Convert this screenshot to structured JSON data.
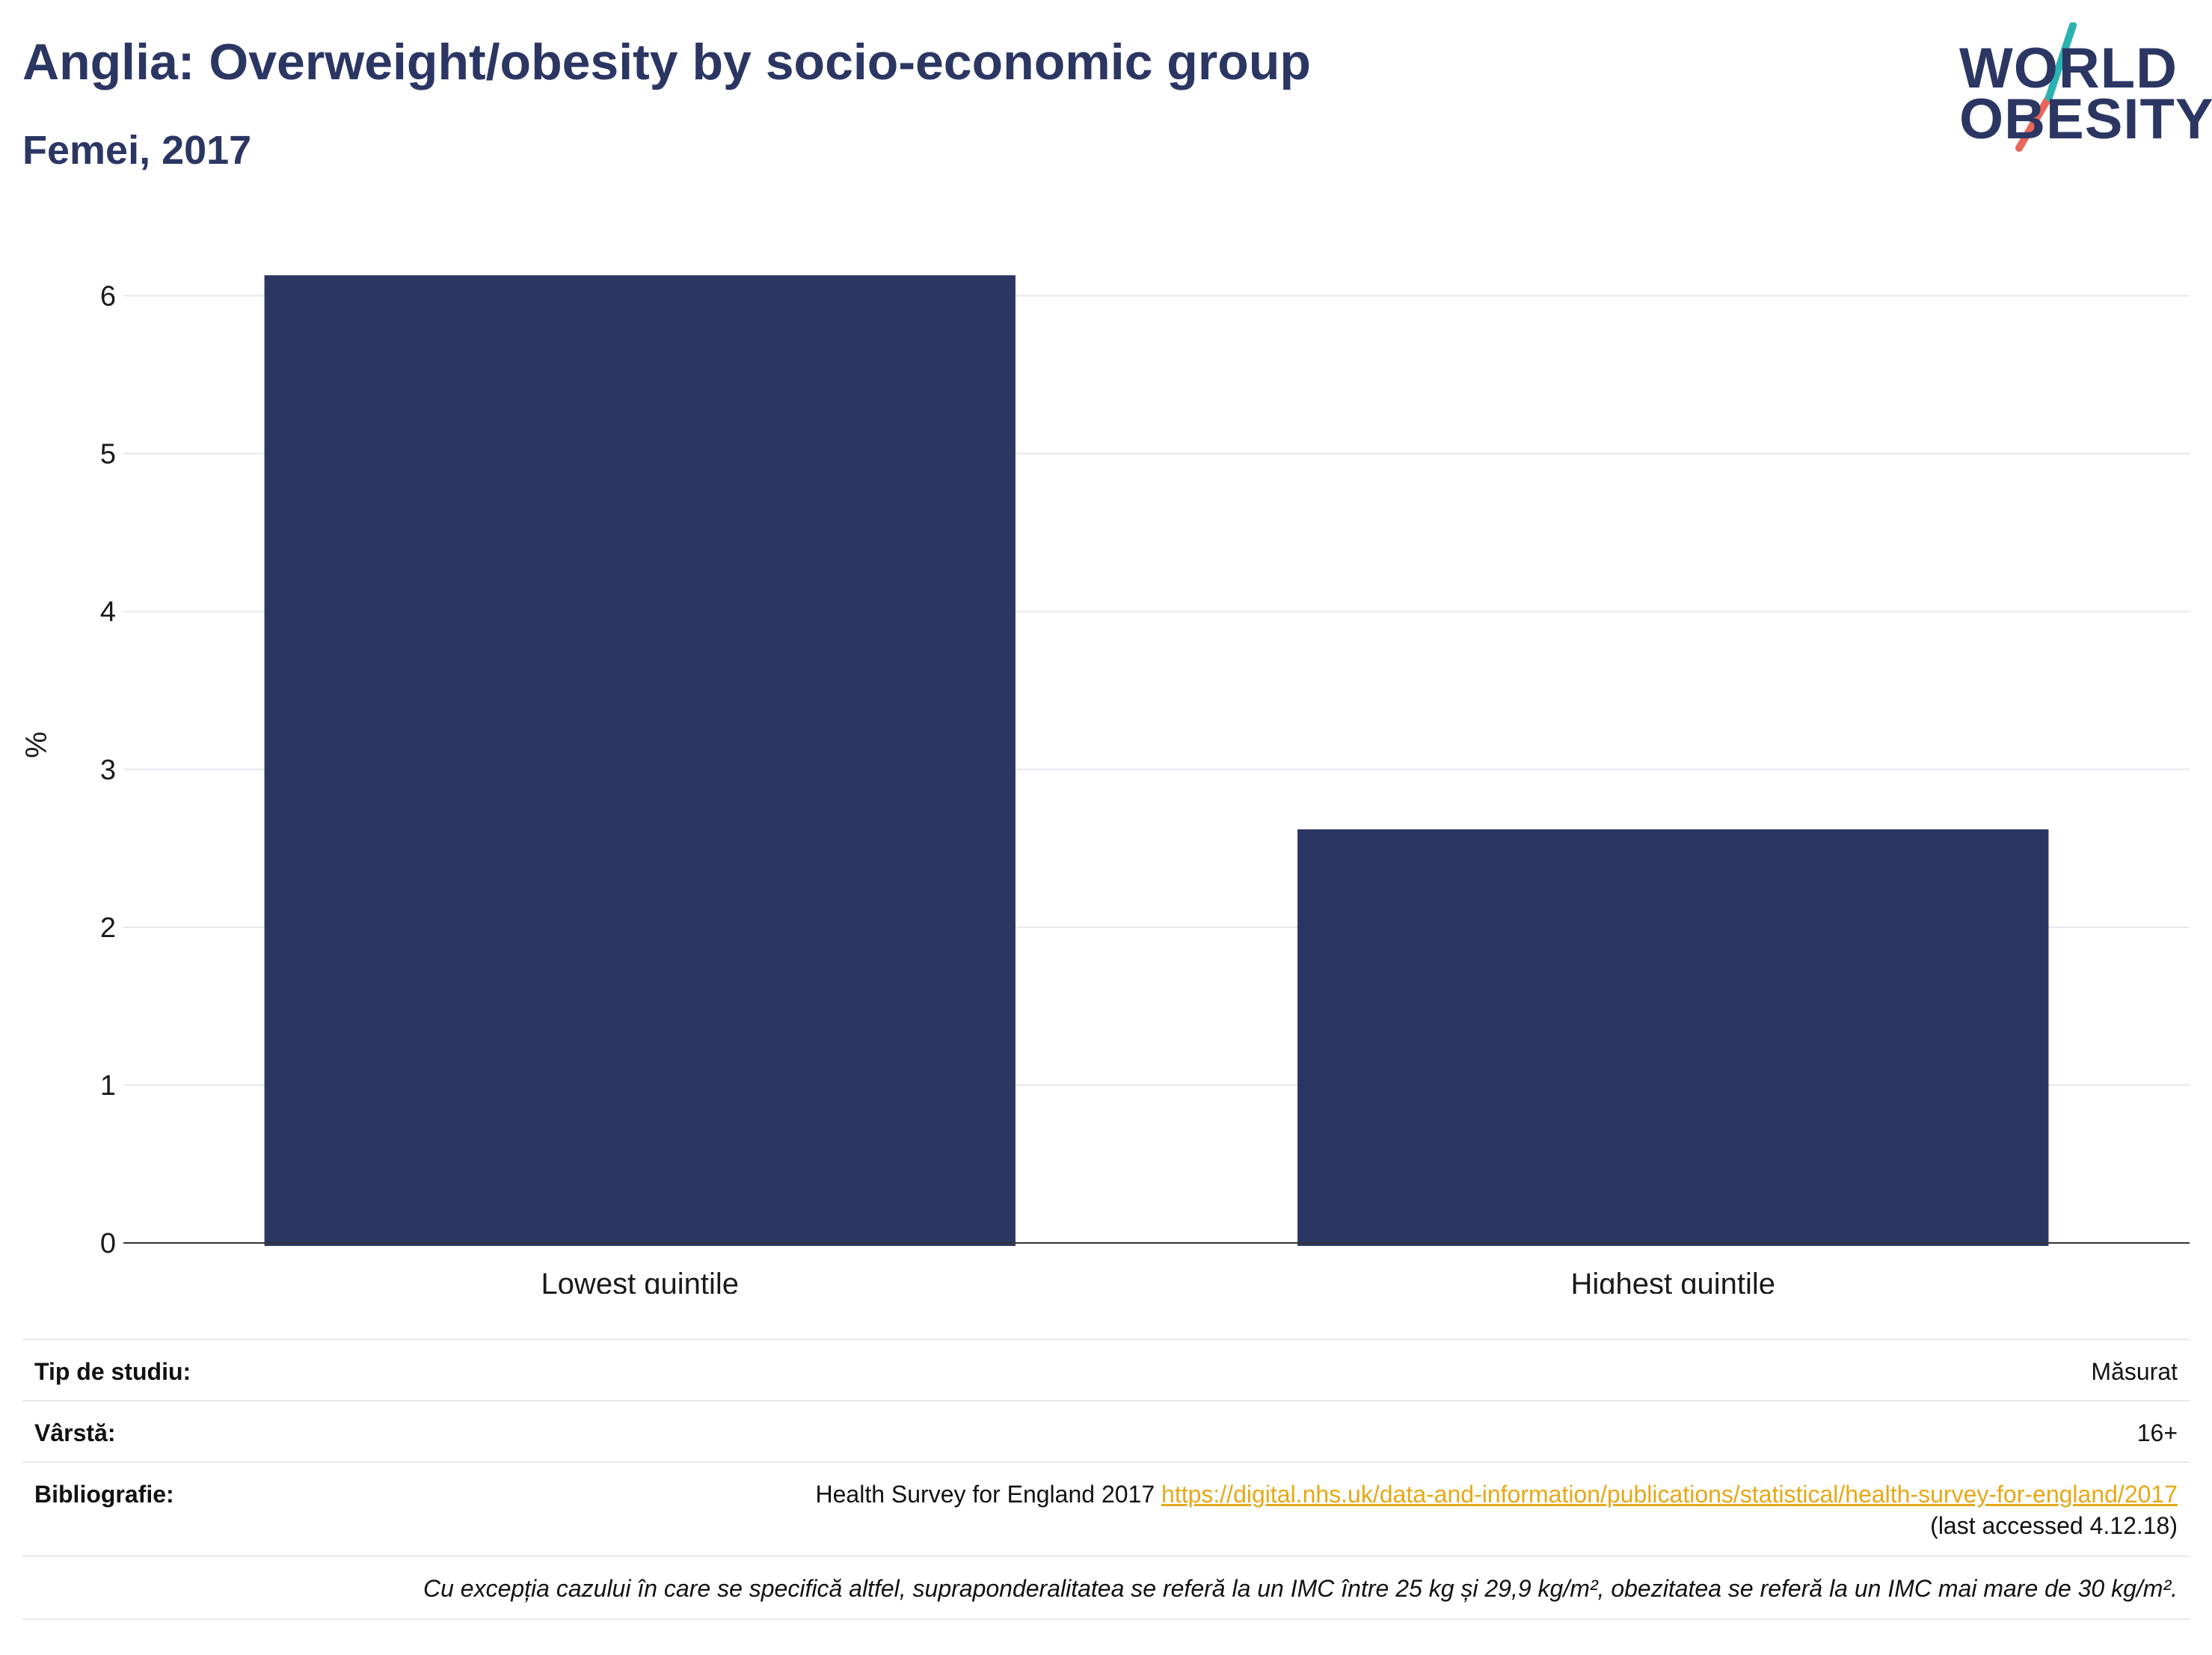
{
  "header": {
    "title": "Anglia: Overweight/obesity by socio-economic group",
    "subtitle": "Femei, 2017"
  },
  "logo": {
    "line1": "WORLD",
    "line2": "OBESITY",
    "colors": {
      "text": "#2b3663",
      "slash_top": "#2bb3b1",
      "slash_bottom": "#e8665a"
    }
  },
  "chart_data": {
    "type": "bar",
    "categories": [
      "Lowest quintile",
      "Highest quintile"
    ],
    "values": [
      6.13,
      2.62
    ],
    "ylabel": "%",
    "ylim": [
      0,
      6.5
    ],
    "yticks": [
      0,
      1,
      2,
      3,
      4,
      5,
      6
    ],
    "grid": true,
    "bar_color": "#2b3663"
  },
  "meta": {
    "study_type": {
      "label": "Tip de studiu:",
      "value": "Măsurat"
    },
    "age": {
      "label": "Vârstă:",
      "value": "16+"
    },
    "bibliography": {
      "label": "Bibliografie:",
      "source": "Health Survey for England 2017",
      "link": "https://digital.nhs.uk/data-and-information/publications/statistical/health-survey-for-england/2017",
      "accessed": "(last accessed 4.12.18)"
    },
    "note": "Cu excepția cazului în care se specifică altfel, supraponderalitatea se referă la un IMC între 25 kg și 29,9 kg/m², obezitatea se referă la un IMC mai mare de 30 kg/m²."
  }
}
